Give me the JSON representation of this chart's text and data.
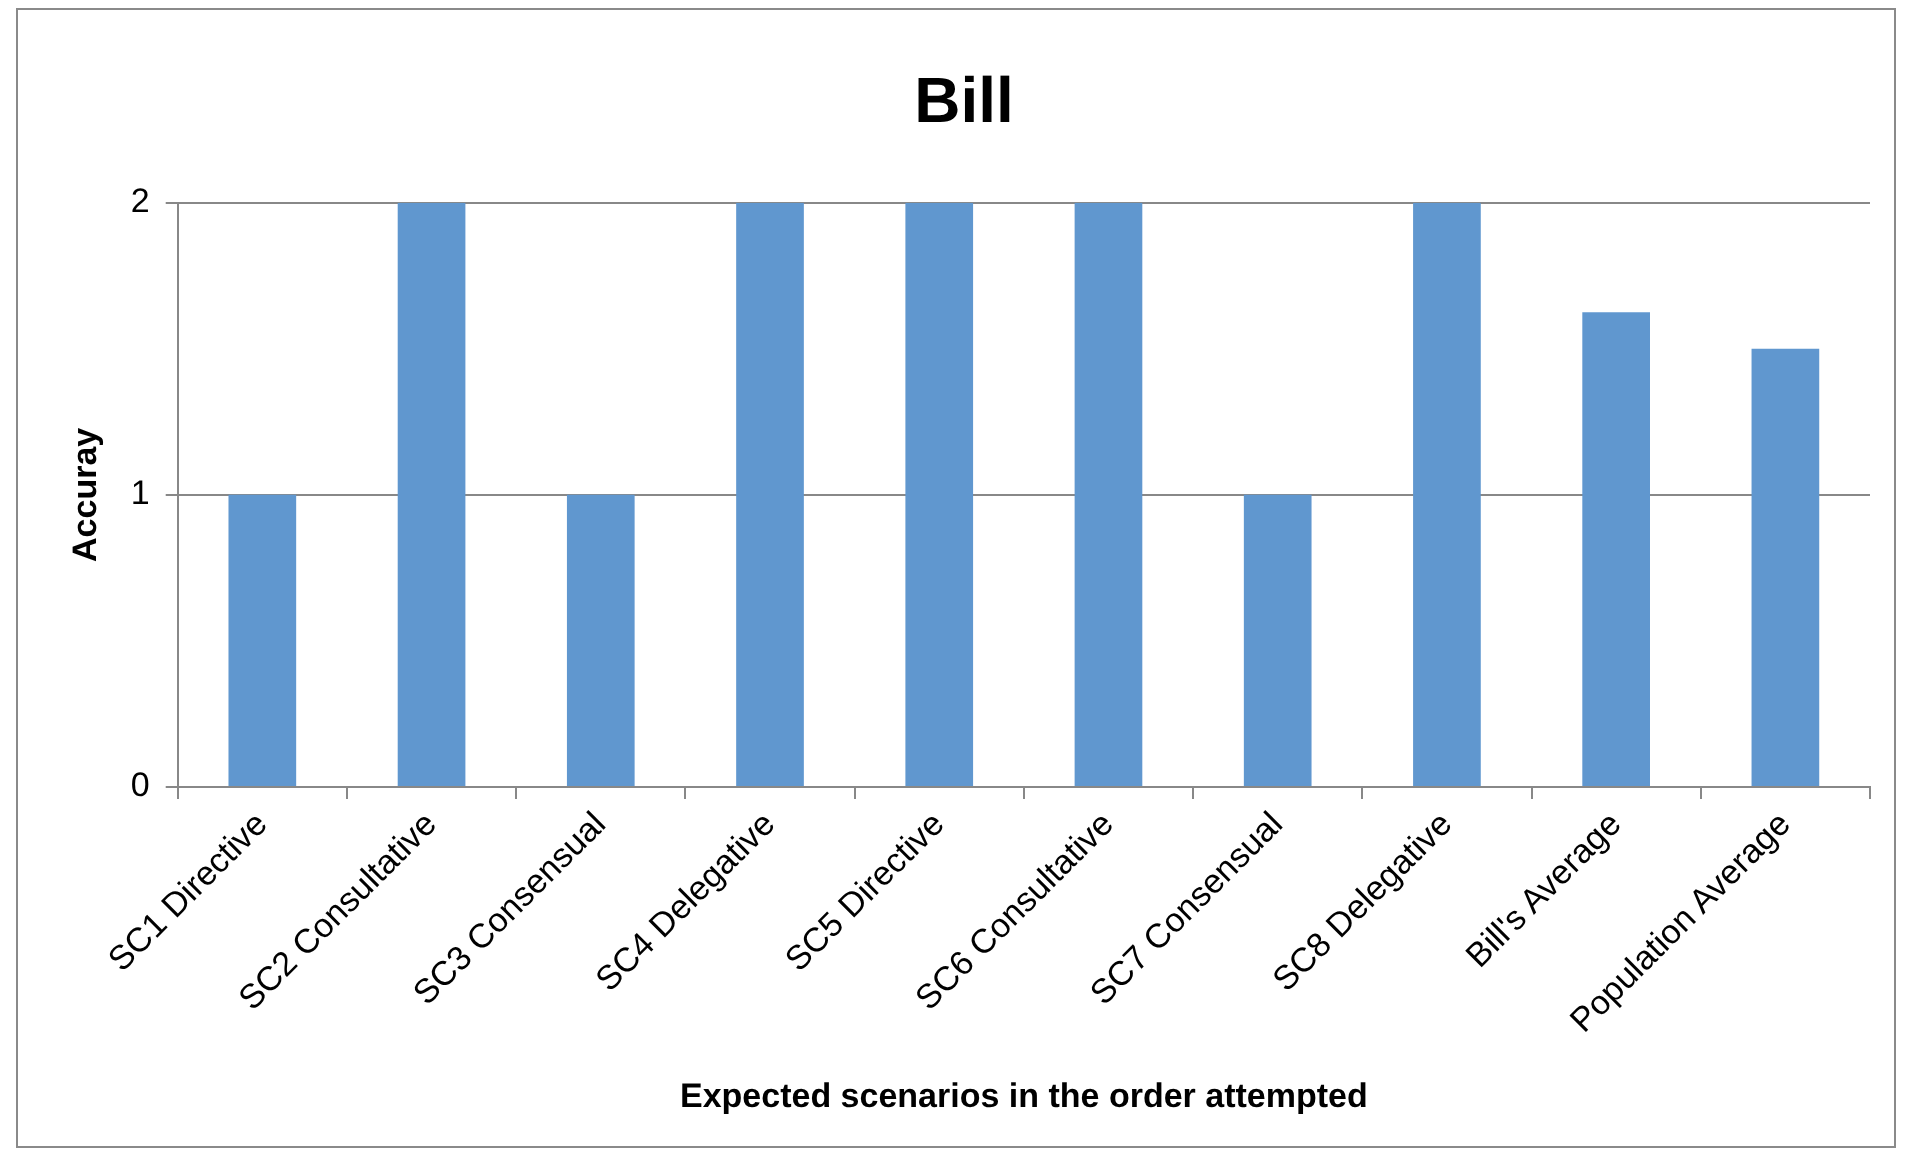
{
  "chart_data": {
    "type": "bar",
    "title": "Bill",
    "xlabel": "Expected scenarios in the order attempted",
    "ylabel": "Accuray",
    "categories": [
      "SC1 Directive",
      "SC2 Consultative",
      "SC3 Consensual",
      "SC4 Delegative",
      "SC5 Directive",
      "SC6 Consultative",
      "SC7 Consensual",
      "SC8 Delegative",
      "Bill's Average",
      "Population Average"
    ],
    "values": [
      1,
      2,
      1,
      2,
      2,
      2,
      1,
      2,
      1.625,
      1.5
    ],
    "color": "#6097cf",
    "ylim": [
      0,
      2
    ],
    "yticks": [
      0,
      1,
      2
    ],
    "grid": "y"
  }
}
